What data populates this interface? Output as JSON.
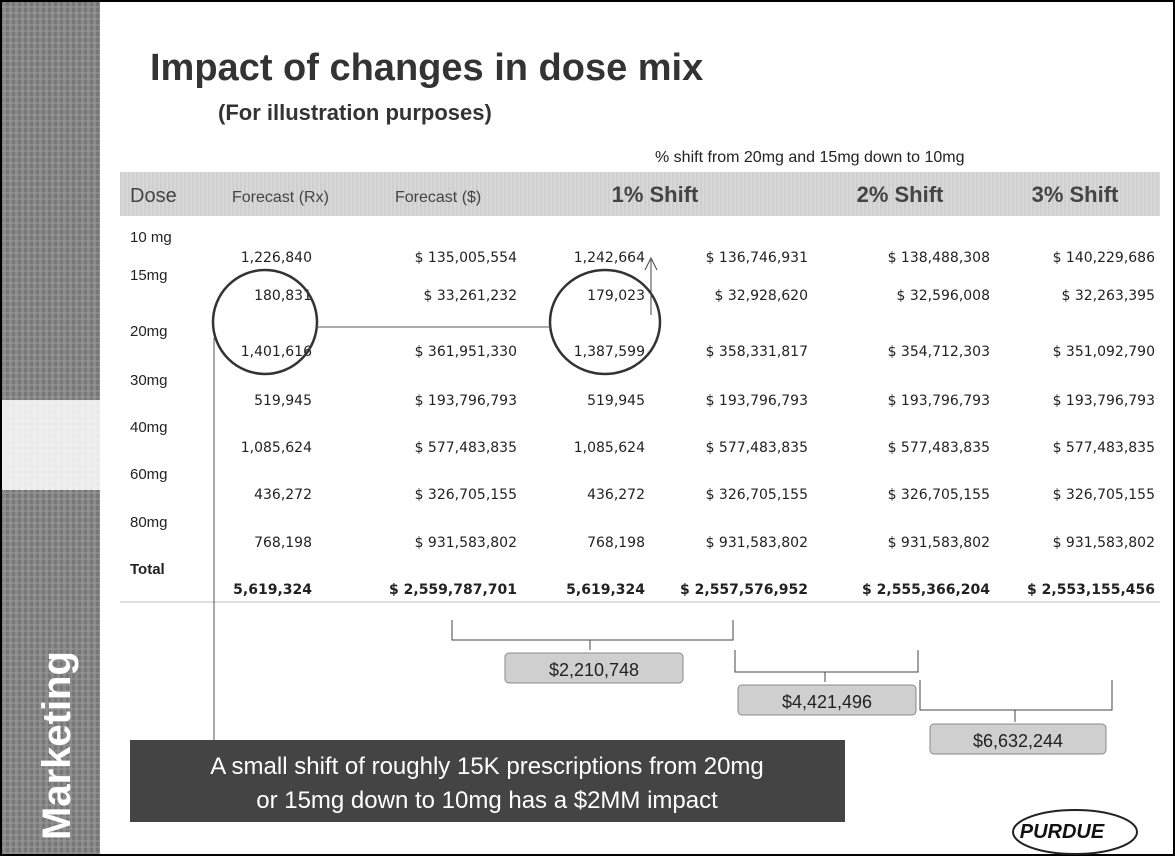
{
  "sidebar_label": "Marketing",
  "title": "Impact of changes in dose mix",
  "subtitle": "(For illustration purposes)",
  "shift_note": "% shift from 20mg and 15mg down to 10mg",
  "table": {
    "header": [
      "Dose",
      "Forecast (Rx)",
      "Forecast ($)",
      "1% Shift",
      "2% Shift",
      "3% Shift"
    ],
    "rows": [
      [
        "10 mg",
        "1,226,840",
        "$ 135,005,554",
        "1,242,664",
        "$ 136,746,931",
        "$ 138,488,308",
        "$ 140,229,686"
      ],
      [
        "15mg",
        "180,831",
        "$ 33,261,232",
        "179,023",
        "$ 32,928,620",
        "$ 32,596,008",
        "$ 32,263,395"
      ],
      [
        "20mg",
        "1,401,616",
        "$ 361,951,330",
        "1,387,599",
        "$ 358,331,817",
        "$ 354,712,303",
        "$ 351,092,790"
      ],
      [
        "30mg",
        "519,945",
        "$ 193,796,793",
        "519,945",
        "$ 193,796,793",
        "$ 193,796,793",
        "$ 193,796,793"
      ],
      [
        "40mg",
        "1,085,624",
        "$ 577,483,835",
        "1,085,624",
        "$ 577,483,835",
        "$ 577,483,835",
        "$ 577,483,835"
      ],
      [
        "60mg",
        "436,272",
        "$ 326,705,155",
        "436,272",
        "$ 326,705,155",
        "$ 326,705,155",
        "$ 326,705,155"
      ],
      [
        "80mg",
        "768,198",
        "$ 931,583,802",
        "768,198",
        "$ 931,583,802",
        "$ 931,583,802",
        "$ 931,583,802"
      ],
      [
        "Total",
        "5,619,324",
        "$ 2,559,787,701",
        "5,619,324",
        "$ 2,557,576,952",
        "$ 2,555,366,204",
        "$ 2,553,155,456"
      ]
    ]
  },
  "callouts": [
    "$2,210,748",
    "$4,421,496",
    "$6,632,244"
  ],
  "banner": [
    "A small shift of roughly 15K prescriptions from 20mg",
    "or 15mg down to 10mg has a $2MM impact"
  ],
  "logo": "PURDUE"
}
